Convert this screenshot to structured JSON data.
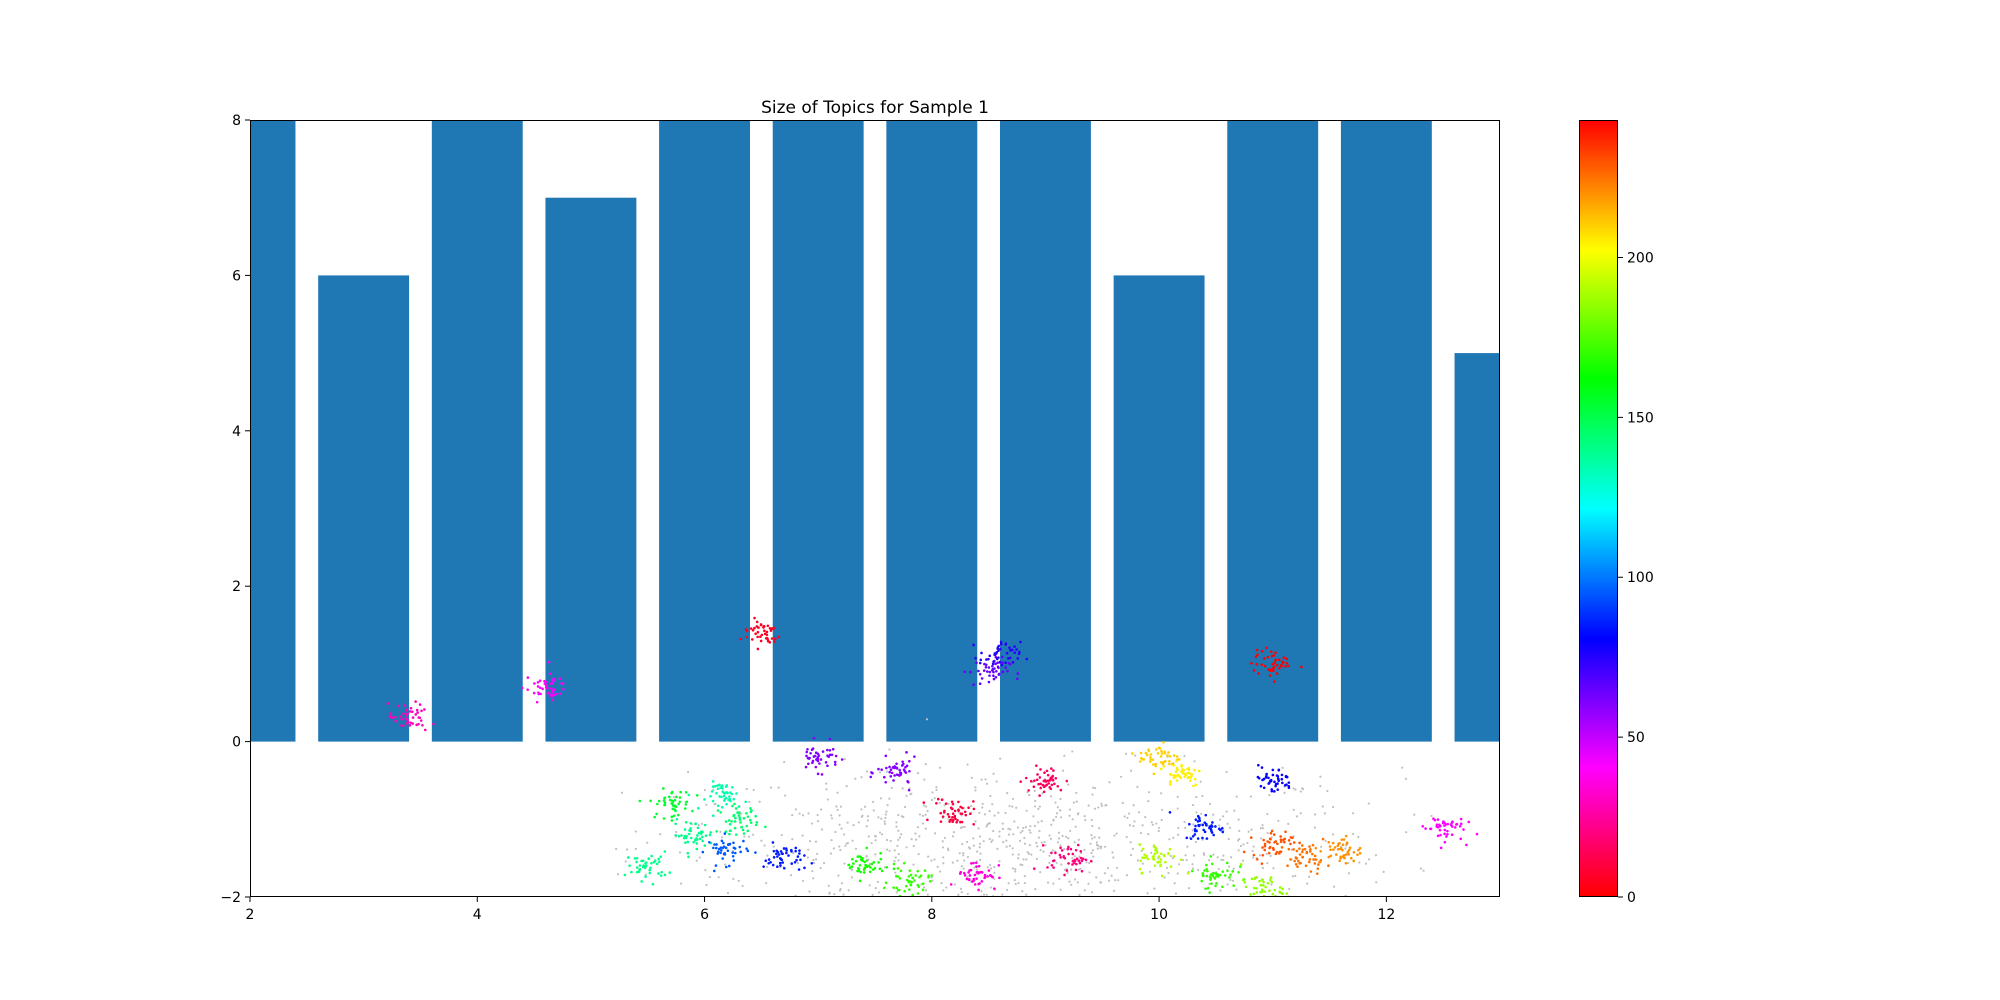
{
  "chart_data": {
    "type": "bar",
    "title": "Size of Topics for Sample 1",
    "xlabel": "",
    "ylabel": "",
    "xlim": [
      2,
      13
    ],
    "ylim": [
      -2,
      8
    ],
    "x_ticks": [
      "2",
      "4",
      "6",
      "8",
      "10",
      "12"
    ],
    "y_ticks": [
      "−2",
      "0",
      "2",
      "4",
      "6",
      "8"
    ],
    "bar_width": 0.8,
    "bar_color": "#1f77b4",
    "bars": [
      {
        "x": 2,
        "value": 8
      },
      {
        "x": 3,
        "value": 6
      },
      {
        "x": 4,
        "value": 8
      },
      {
        "x": 5,
        "value": 7
      },
      {
        "x": 6,
        "value": 8
      },
      {
        "x": 7,
        "value": 8
      },
      {
        "x": 8,
        "value": 8
      },
      {
        "x": 9,
        "value": 8
      },
      {
        "x": 10,
        "value": 6
      },
      {
        "x": 11,
        "value": 8
      },
      {
        "x": 12,
        "value": 8
      },
      {
        "x": 13,
        "value": 5
      }
    ],
    "scatter": {
      "type": "scatter",
      "noise_color": "#c0c0c0",
      "colormap": "hsv",
      "clusters": [
        {
          "x": 5.5,
          "y": -1.6,
          "value": 140
        },
        {
          "x": 5.7,
          "y": -0.8,
          "value": 155
        },
        {
          "x": 5.9,
          "y": -1.2,
          "value": 140
        },
        {
          "x": 6.2,
          "y": -0.7,
          "value": 135
        },
        {
          "x": 6.3,
          "y": -1.0,
          "value": 145
        },
        {
          "x": 6.2,
          "y": -1.4,
          "value": 95
        },
        {
          "x": 6.7,
          "y": -1.5,
          "value": 85
        },
        {
          "x": 7.0,
          "y": -0.2,
          "value": 60
        },
        {
          "x": 7.7,
          "y": -0.4,
          "value": 60
        },
        {
          "x": 7.4,
          "y": -1.6,
          "value": 165
        },
        {
          "x": 7.8,
          "y": -1.8,
          "value": 170
        },
        {
          "x": 8.2,
          "y": -0.9,
          "value": 10
        },
        {
          "x": 8.4,
          "y": -1.7,
          "value": 35
        },
        {
          "x": 8.5,
          "y": 0.9,
          "value": 65
        },
        {
          "x": 8.6,
          "y": 1.1,
          "value": 75
        },
        {
          "x": 9.0,
          "y": -0.5,
          "value": 15
        },
        {
          "x": 9.2,
          "y": -1.5,
          "value": 20
        },
        {
          "x": 10.0,
          "y": -0.2,
          "value": 210
        },
        {
          "x": 10.2,
          "y": -0.4,
          "value": 205
        },
        {
          "x": 10.0,
          "y": -1.5,
          "value": 190
        },
        {
          "x": 10.4,
          "y": -1.1,
          "value": 85
        },
        {
          "x": 10.5,
          "y": -1.7,
          "value": 170
        },
        {
          "x": 11.0,
          "y": -0.5,
          "value": 80
        },
        {
          "x": 11.0,
          "y": -1.3,
          "value": 230
        },
        {
          "x": 11.3,
          "y": -1.5,
          "value": 225
        },
        {
          "x": 11.6,
          "y": -1.4,
          "value": 220
        },
        {
          "x": 10.9,
          "y": -1.9,
          "value": 185
        },
        {
          "x": 11.0,
          "y": 1.0,
          "value": 0
        },
        {
          "x": 12.5,
          "y": -1.1,
          "value": 40
        },
        {
          "x": 6.5,
          "y": 1.4,
          "value": 5
        },
        {
          "x": 4.6,
          "y": 0.7,
          "value": 40
        },
        {
          "x": 3.4,
          "y": 0.3,
          "value": 30
        }
      ]
    },
    "colorbar": {
      "colormap": "hsv",
      "min": 0,
      "max": 243,
      "ticks": [
        "0",
        "50",
        "100",
        "150",
        "200"
      ],
      "tick_values": [
        0,
        50,
        100,
        150,
        200
      ]
    }
  }
}
